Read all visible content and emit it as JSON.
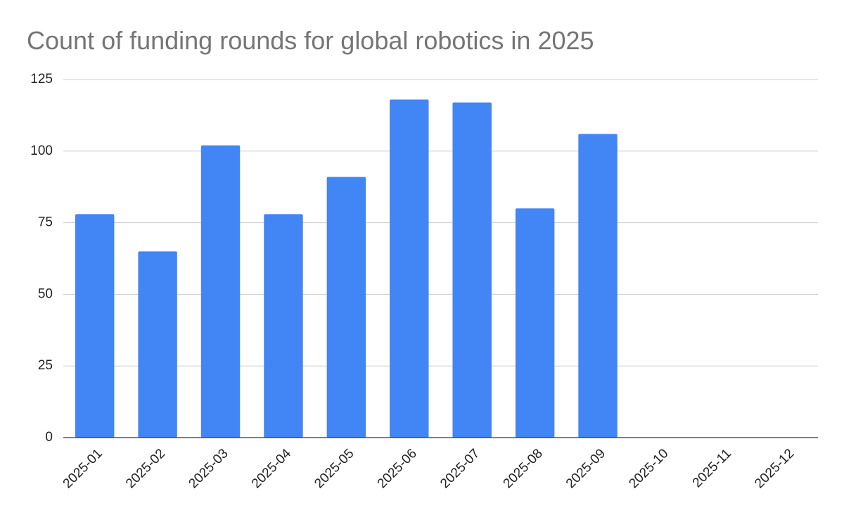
{
  "chart_data": {
    "type": "bar",
    "title": "Count of funding rounds for global robotics in 2025",
    "categories": [
      "2025-01",
      "2025-02",
      "2025-03",
      "2025-04",
      "2025-05",
      "2025-06",
      "2025-07",
      "2025-08",
      "2025-09",
      "2025-10",
      "2025-11",
      "2025-12"
    ],
    "values": [
      78,
      65,
      102,
      78,
      91,
      118,
      117,
      80,
      106,
      null,
      null,
      null
    ],
    "color": "#4285f4",
    "ylim": [
      0,
      125
    ],
    "yticks": [
      0,
      25,
      50,
      75,
      100,
      125
    ],
    "grid": true
  }
}
